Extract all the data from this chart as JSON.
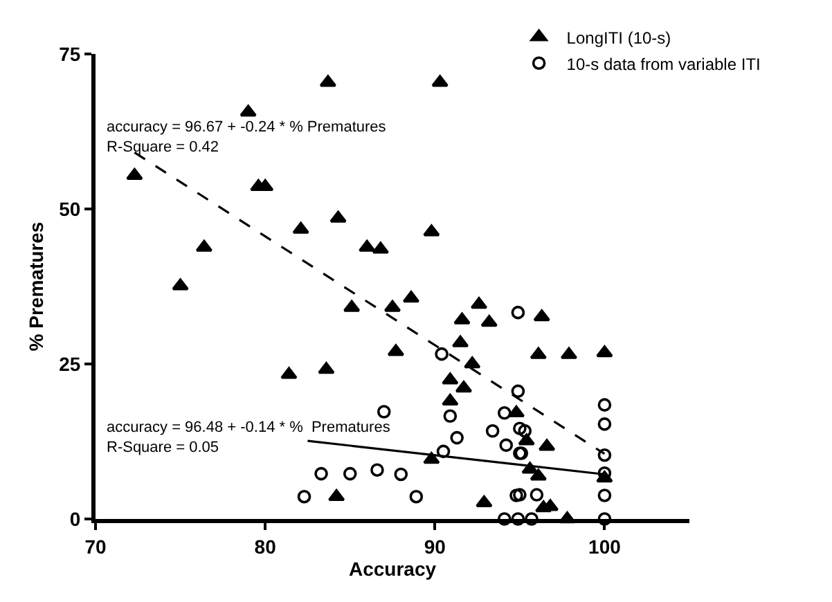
{
  "chart_data": {
    "type": "scatter",
    "xlabel": "Accuracy",
    "ylabel": "% Prematures",
    "xlim": [
      70,
      105
    ],
    "ylim": [
      0,
      75
    ],
    "xticks": [
      70,
      80,
      90,
      100
    ],
    "yticks": [
      0,
      25,
      50,
      75
    ],
    "legend": "top right",
    "series": [
      {
        "name": "LongITI (10-s)",
        "type": "scatter",
        "marker": "triangle",
        "color": "#000000",
        "x": [
          83.7,
          79.0,
          72.3,
          79.6,
          80.0,
          84.3,
          82.1,
          76.4,
          75.0,
          85.1,
          90.3,
          89.8,
          86.0,
          86.8,
          88.6,
          87.5,
          91.6,
          92.6,
          93.2,
          81.4,
          83.6,
          84.2,
          87.7,
          91.5,
          92.2,
          90.9,
          91.7,
          90.9,
          89.8,
          92.9,
          96.1,
          97.9,
          100.0,
          96.3,
          94.8,
          95.4,
          96.6,
          95.6,
          96.1,
          96.4,
          96.8,
          97.8,
          100.0
        ],
        "values": [
          70.4,
          65.6,
          55.4,
          53.6,
          53.6,
          48.5,
          46.7,
          43.8,
          37.6,
          34.1,
          70.4,
          46.3,
          43.8,
          43.5,
          35.6,
          34.1,
          32.1,
          34.6,
          31.7,
          23.3,
          24.1,
          3.6,
          27.0,
          28.4,
          25.0,
          22.4,
          21.1,
          19.0,
          9.6,
          2.6,
          26.5,
          26.5,
          26.8,
          32.6,
          17.1,
          12.6,
          11.7,
          8.0,
          6.9,
          1.8,
          2.0,
          0,
          6.6
        ]
      },
      {
        "name": "10-s data from variable ITI",
        "type": "scatter",
        "marker": "circle",
        "color": "#000000",
        "x": [
          94.9,
          83.3,
          85.0,
          82.3,
          90.4,
          87.0,
          90.9,
          91.3,
          90.5,
          86.6,
          88.0,
          88.9,
          94.9,
          94.1,
          93.4,
          94.2,
          94.1,
          94.9,
          94.8,
          95.0,
          95.3,
          95.0,
          95.1,
          95.0,
          96.0,
          95.7,
          100,
          100,
          100,
          100,
          100,
          100
        ],
        "values": [
          33.3,
          7.3,
          7.3,
          3.6,
          26.6,
          17.3,
          16.6,
          13.1,
          10.9,
          7.9,
          7.2,
          3.6,
          20.6,
          17.1,
          14.2,
          11.9,
          0,
          0,
          3.8,
          14.6,
          14.2,
          10.6,
          10.6,
          3.9,
          3.9,
          0,
          18.4,
          15.3,
          10.3,
          7.4,
          3.8,
          0
        ]
      },
      {
        "type": "line",
        "line_style": "dashed",
        "marker": "none",
        "color": "#000000",
        "x": [
          72.3,
          100
        ],
        "values": [
          59.1,
          10.5
        ]
      },
      {
        "type": "line",
        "line_style": "solid",
        "marker": "none",
        "color": "#000000",
        "x": [
          82.5,
          100
        ],
        "values": [
          12.6,
          7.2
        ]
      }
    ],
    "annotations": [
      "accuracy = 96.67 + -0.24 * % Prematures\nR-Square = 0.42",
      "accuracy = 96.48 + -0.14 * %  Prematures\nR-Square = 0.05"
    ]
  }
}
